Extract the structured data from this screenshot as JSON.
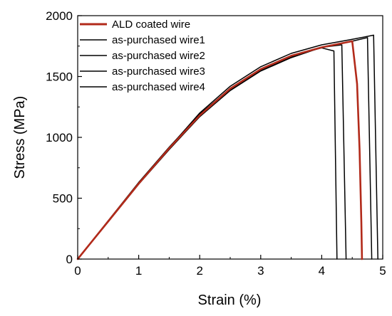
{
  "chart_data": {
    "type": "line",
    "title": "",
    "xlabel": "Strain (%)",
    "ylabel": "Stress (MPa)",
    "xlim": [
      0,
      5
    ],
    "ylim": [
      0,
      2000
    ],
    "xticks": [
      0,
      1,
      2,
      3,
      4,
      5
    ],
    "yticks": [
      0,
      500,
      1000,
      1500,
      2000
    ],
    "grid": false,
    "legend_position": "top-left",
    "series": [
      {
        "name": "ALD coated wire",
        "color": "#b22a1a",
        "points": [
          [
            0,
            0
          ],
          [
            0.5,
            310
          ],
          [
            1,
            620
          ],
          [
            1.5,
            910
          ],
          [
            2,
            1180
          ],
          [
            2.5,
            1400
          ],
          [
            3,
            1560
          ],
          [
            3.5,
            1670
          ],
          [
            4,
            1740
          ],
          [
            4.5,
            1790
          ],
          [
            4.58,
            1440
          ],
          [
            4.62,
            900
          ],
          [
            4.65,
            300
          ],
          [
            4.66,
            0
          ]
        ]
      },
      {
        "name": "as-purchased wire1",
        "color": "#000000",
        "points": [
          [
            0,
            0
          ],
          [
            0.5,
            315
          ],
          [
            1,
            630
          ],
          [
            1.5,
            920
          ],
          [
            2,
            1190
          ],
          [
            2.5,
            1400
          ],
          [
            3,
            1560
          ],
          [
            3.5,
            1670
          ],
          [
            4,
            1735
          ],
          [
            4.2,
            1710
          ],
          [
            4.25,
            0
          ]
        ]
      },
      {
        "name": "as-purchased wire2",
        "color": "#000000",
        "points": [
          [
            0,
            0
          ],
          [
            0.5,
            310
          ],
          [
            1,
            620
          ],
          [
            1.5,
            905
          ],
          [
            2,
            1170
          ],
          [
            2.5,
            1390
          ],
          [
            3,
            1550
          ],
          [
            3.5,
            1660
          ],
          [
            4,
            1740
          ],
          [
            4.33,
            1760
          ],
          [
            4.4,
            0
          ]
        ]
      },
      {
        "name": "as-purchased wire3",
        "color": "#000000",
        "points": [
          [
            0,
            0
          ],
          [
            0.5,
            305
          ],
          [
            1,
            615
          ],
          [
            1.5,
            900
          ],
          [
            2,
            1170
          ],
          [
            2.5,
            1385
          ],
          [
            3,
            1545
          ],
          [
            3.5,
            1655
          ],
          [
            4,
            1740
          ],
          [
            4.5,
            1790
          ],
          [
            4.75,
            1820
          ],
          [
            4.82,
            0
          ]
        ]
      },
      {
        "name": "as-purchased wire4",
        "color": "#000000",
        "points": [
          [
            0,
            0
          ],
          [
            0.5,
            310
          ],
          [
            1,
            625
          ],
          [
            1.5,
            915
          ],
          [
            2,
            1200
          ],
          [
            2.5,
            1420
          ],
          [
            3,
            1580
          ],
          [
            3.5,
            1690
          ],
          [
            4,
            1760
          ],
          [
            4.5,
            1805
          ],
          [
            4.85,
            1840
          ],
          [
            4.92,
            0
          ]
        ]
      }
    ]
  }
}
